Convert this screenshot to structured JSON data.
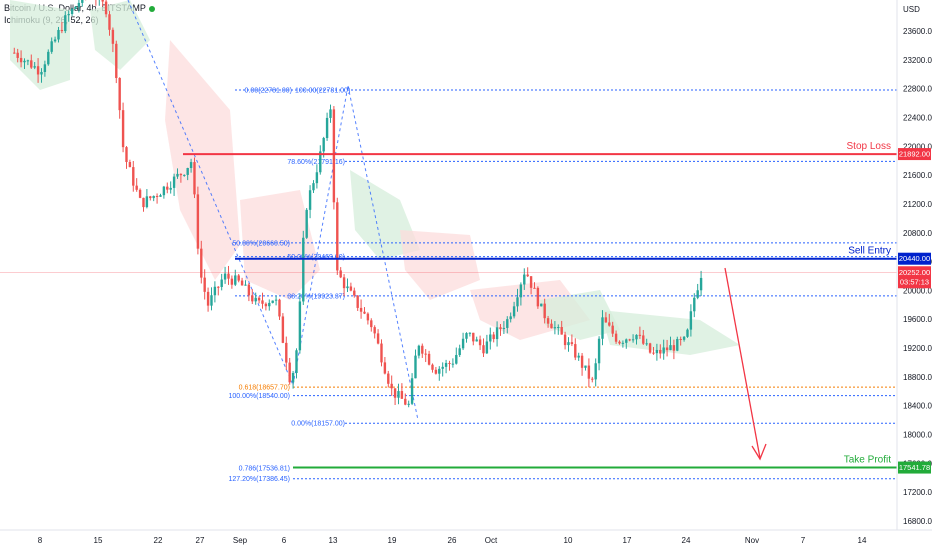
{
  "header": {
    "symbol_line": "Bitcoin / U.S. Dollar, 4h, BITSTAMP",
    "indicator_line": "Ichimoku (9, 26, 52, 26)"
  },
  "price_axis": {
    "unit": "USD",
    "ticks": [
      "23600.00",
      "23200.00",
      "22800.00",
      "22400.00",
      "22000.00",
      "21600.00",
      "21200.00",
      "20800.00",
      "20400.00",
      "20000.00",
      "19600.00",
      "19200.00",
      "18800.00",
      "18400.00",
      "18000.00",
      "17600.00",
      "17200.00",
      "16800.00"
    ]
  },
  "time_axis": {
    "ticks": [
      "8",
      "15",
      "22",
      "27",
      "Sep",
      "6",
      "13",
      "19",
      "26",
      "Oct",
      "10",
      "17",
      "24",
      "Nov",
      "7",
      "14"
    ]
  },
  "levels": {
    "stop_loss": {
      "label": "Stop Loss",
      "price": 21892,
      "tag": "21892.00",
      "color": "#f23645"
    },
    "sell_entry": {
      "label": "Sell Entry",
      "price": 20440,
      "tag": "20440.00",
      "color": "#0022cc"
    },
    "take_profit": {
      "label": "Take Profit",
      "price": 17541.78,
      "tag": "17541.78",
      "color": "#22ab3a"
    },
    "current_price": {
      "price": 20252,
      "tag": "20252.00",
      "timer": "03:57:13",
      "color": "#f23645"
    }
  },
  "fib_labels": [
    {
      "text": "0.00(22781.00)",
      "price": 22781,
      "color": "#2962ff"
    },
    {
      "text": "100.00(22781.00)",
      "price": 22781,
      "color": "#2962ff"
    },
    {
      "text": "78.60%(21791.16)",
      "price": 21791.16,
      "color": "#2962ff"
    },
    {
      "text": "50.00%(20660.50)",
      "price": 20660.5,
      "color": "#2962ff"
    },
    {
      "text": "50.00%(20469.00)",
      "price": 20469,
      "color": "#2962ff"
    },
    {
      "text": "38.20%(19923.37)",
      "price": 19923.37,
      "color": "#2962ff"
    },
    {
      "text": "0.618(18657.70)",
      "price": 18657.7,
      "color": "#f57c00"
    },
    {
      "text": "100.00%(18540.00)",
      "price": 18540,
      "color": "#2962ff"
    },
    {
      "text": "0.00%(18157.00)",
      "price": 18157,
      "color": "#2962ff"
    },
    {
      "text": "0.786(17536.81)",
      "price": 17536.81,
      "color": "#2962ff"
    },
    {
      "text": "127.20%(17386.45)",
      "price": 17386.45,
      "color": "#2962ff"
    }
  ],
  "chart_data": {
    "type": "candlestick",
    "title": "Bitcoin / U.S. Dollar, 4h, BITSTAMP",
    "ylabel": "USD",
    "ylim": [
      16600,
      23900
    ],
    "yscale": "linear",
    "grid": false,
    "indicator": "Ichimoku (9, 26, 52, 26)",
    "price_path": [
      {
        "x": "Aug 4",
        "price": 23300
      },
      {
        "x": "Aug 8",
        "price": 23050
      },
      {
        "x": "Aug 11",
        "price": 23750
      },
      {
        "x": "Aug 14",
        "price": 24200
      },
      {
        "x": "Aug 16",
        "price": 23900
      },
      {
        "x": "Aug 17",
        "price": 23200
      },
      {
        "x": "Aug 18",
        "price": 21900
      },
      {
        "x": "Aug 20",
        "price": 21200
      },
      {
        "x": "Aug 22",
        "price": 21350
      },
      {
        "x": "Aug 25",
        "price": 21650
      },
      {
        "x": "Aug 26",
        "price": 21800
      },
      {
        "x": "Aug 27",
        "price": 20250
      },
      {
        "x": "Aug 28",
        "price": 19800
      },
      {
        "x": "Aug 30",
        "price": 20200
      },
      {
        "x": "Sep 1",
        "price": 20100
      },
      {
        "x": "Sep 3",
        "price": 19800
      },
      {
        "x": "Sep 5",
        "price": 19900
      },
      {
        "x": "Sep 7",
        "price": 18700
      },
      {
        "x": "Sep 8",
        "price": 19300
      },
      {
        "x": "Sep 9",
        "price": 21100
      },
      {
        "x": "Sep 11",
        "price": 21800
      },
      {
        "x": "Sep 13",
        "price": 22700
      },
      {
        "x": "Sep 13",
        "price": 20300
      },
      {
        "x": "Sep 15",
        "price": 19900
      },
      {
        "x": "Sep 17",
        "price": 19500
      },
      {
        "x": "Sep 19",
        "price": 18600
      },
      {
        "x": "Sep 21",
        "price": 18400
      },
      {
        "x": "Sep 22",
        "price": 19300
      },
      {
        "x": "Sep 24",
        "price": 18900
      },
      {
        "x": "Sep 26",
        "price": 19000
      },
      {
        "x": "Sep 28",
        "price": 19400
      },
      {
        "x": "Sep 30",
        "price": 19200
      },
      {
        "x": "Oct 3",
        "price": 19600
      },
      {
        "x": "Oct 5",
        "price": 20300
      },
      {
        "x": "Oct 7",
        "price": 19700
      },
      {
        "x": "Oct 9",
        "price": 19400
      },
      {
        "x": "Oct 11",
        "price": 19100
      },
      {
        "x": "Oct 13",
        "price": 18700
      },
      {
        "x": "Oct 14",
        "price": 19600
      },
      {
        "x": "Oct 16",
        "price": 19300
      },
      {
        "x": "Oct 18",
        "price": 19400
      },
      {
        "x": "Oct 20",
        "price": 19100
      },
      {
        "x": "Oct 22",
        "price": 19200
      },
      {
        "x": "Oct 24",
        "price": 19300
      },
      {
        "x": "Oct 25",
        "price": 19900
      },
      {
        "x": "Oct 26",
        "price": 20300
      }
    ]
  },
  "colors": {
    "bull": "#26a69a",
    "bear": "#ef5350",
    "cloud_bull": "#d6eedb",
    "cloud_bear": "#fcdcdc",
    "fib": "#2962ff",
    "arrow": "#f23645"
  }
}
